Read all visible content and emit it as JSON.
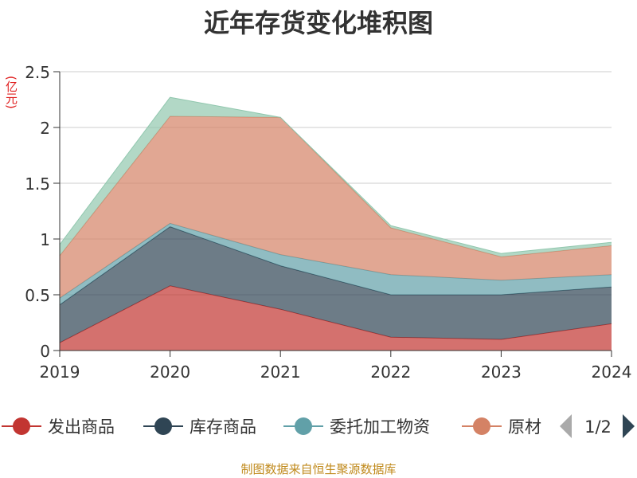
{
  "chart_data": {
    "type": "area",
    "stacked": true,
    "title": "近年存货变化堆积图",
    "unit_label": "(亿元)",
    "x": [
      "2019",
      "2020",
      "2021",
      "2022",
      "2023",
      "2024"
    ],
    "ylim": [
      0,
      2.5
    ],
    "yticks": [
      "0",
      "0.5",
      "1",
      "1.5",
      "2",
      "2.5"
    ],
    "grid": true,
    "series": [
      {
        "name": "发出商品",
        "color": "#c23531",
        "values": [
          0.07,
          0.58,
          0.37,
          0.12,
          0.1,
          0.24
        ]
      },
      {
        "name": "库存商品",
        "color": "#2f4554",
        "values": [
          0.34,
          0.53,
          0.39,
          0.38,
          0.4,
          0.33
        ]
      },
      {
        "name": "委托加工物资",
        "color": "#61a0a8",
        "values": [
          0.06,
          0.03,
          0.1,
          0.18,
          0.13,
          0.11
        ]
      },
      {
        "name": "原材料",
        "color": "#d48265",
        "values": [
          0.38,
          0.96,
          1.23,
          0.42,
          0.21,
          0.26
        ]
      },
      {
        "name": "",
        "color": "#91c7ae",
        "values": [
          0.1,
          0.17,
          0.0,
          0.02,
          0.03,
          0.03
        ]
      }
    ],
    "legend": {
      "placement": "bottom",
      "visible_items": [
        "发出商品",
        "库存商品",
        "委托加工物资",
        "原材"
      ],
      "page": "1/2"
    },
    "source_note": "制图数据来自恒生聚源数据库"
  }
}
